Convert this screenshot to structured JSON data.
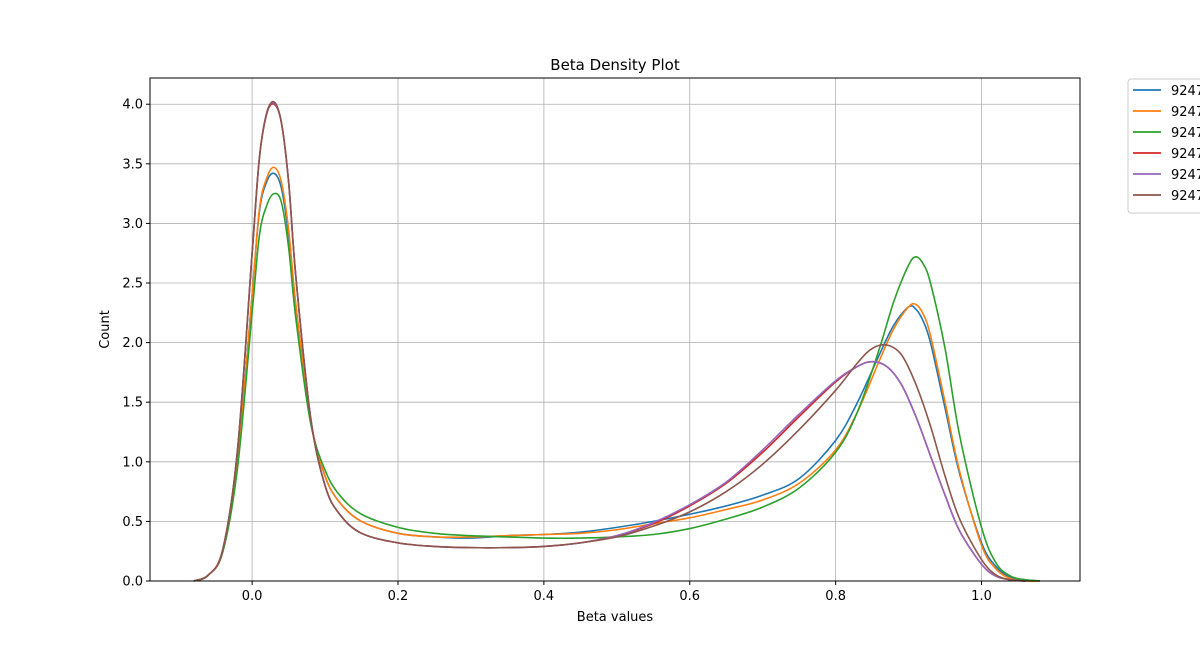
{
  "chart_data": {
    "type": "line",
    "title": "Beta Density Plot",
    "xlabel": "Beta values",
    "ylabel": "Count",
    "xlim": [
      -0.14,
      1.135
    ],
    "ylim": [
      0,
      4.22
    ],
    "xticks": [
      0.0,
      0.2,
      0.4,
      0.6,
      0.8,
      1.0
    ],
    "xtick_labels": [
      "0.0",
      "0.2",
      "0.4",
      "0.6",
      "0.8",
      "1.0"
    ],
    "yticks": [
      0.0,
      0.5,
      1.0,
      1.5,
      2.0,
      2.5,
      3.0,
      3.5,
      4.0
    ],
    "ytick_labels": [
      "0.0",
      "0.5",
      "1.0",
      "1.5",
      "2.0",
      "2.5",
      "3.0",
      "3.5",
      "4.0"
    ],
    "grid": true,
    "legend_position": "outside top-right",
    "series": [
      {
        "name": "9247",
        "color": "#1f77b4",
        "x": [
          -0.08,
          -0.06,
          -0.04,
          -0.02,
          0.0,
          0.01,
          0.02,
          0.03,
          0.04,
          0.05,
          0.06,
          0.08,
          0.1,
          0.12,
          0.15,
          0.2,
          0.25,
          0.3,
          0.35,
          0.4,
          0.45,
          0.5,
          0.55,
          0.6,
          0.65,
          0.7,
          0.75,
          0.8,
          0.83,
          0.86,
          0.88,
          0.9,
          0.91,
          0.92,
          0.93,
          0.95,
          0.97,
          1.0,
          1.02,
          1.04,
          1.06,
          1.08
        ],
        "y": [
          0.0,
          0.05,
          0.25,
          1.0,
          2.4,
          3.1,
          3.35,
          3.42,
          3.3,
          2.9,
          2.3,
          1.35,
          0.88,
          0.66,
          0.5,
          0.4,
          0.37,
          0.36,
          0.38,
          0.39,
          0.41,
          0.45,
          0.5,
          0.56,
          0.63,
          0.72,
          0.86,
          1.18,
          1.5,
          1.9,
          2.15,
          2.3,
          2.28,
          2.18,
          2.0,
          1.45,
          0.9,
          0.32,
          0.12,
          0.03,
          0.01,
          0.0
        ]
      },
      {
        "name": "9247",
        "color": "#ff7f0e",
        "x": [
          -0.08,
          -0.06,
          -0.04,
          -0.02,
          0.0,
          0.01,
          0.02,
          0.03,
          0.04,
          0.05,
          0.06,
          0.08,
          0.1,
          0.12,
          0.15,
          0.2,
          0.25,
          0.3,
          0.35,
          0.4,
          0.45,
          0.5,
          0.55,
          0.6,
          0.65,
          0.7,
          0.75,
          0.8,
          0.83,
          0.86,
          0.88,
          0.9,
          0.91,
          0.92,
          0.93,
          0.95,
          0.97,
          1.0,
          1.02,
          1.04,
          1.06,
          1.08
        ],
        "y": [
          0.0,
          0.05,
          0.25,
          1.0,
          2.4,
          3.12,
          3.38,
          3.47,
          3.35,
          2.95,
          2.32,
          1.36,
          0.88,
          0.66,
          0.5,
          0.4,
          0.37,
          0.37,
          0.38,
          0.39,
          0.4,
          0.43,
          0.48,
          0.53,
          0.6,
          0.68,
          0.82,
          1.1,
          1.42,
          1.85,
          2.12,
          2.3,
          2.32,
          2.24,
          2.06,
          1.5,
          0.92,
          0.3,
          0.1,
          0.02,
          0.0,
          0.0
        ]
      },
      {
        "name": "9247",
        "color": "#2ca02c",
        "x": [
          -0.08,
          -0.06,
          -0.04,
          -0.02,
          0.0,
          0.01,
          0.02,
          0.03,
          0.04,
          0.05,
          0.06,
          0.08,
          0.1,
          0.12,
          0.15,
          0.2,
          0.25,
          0.3,
          0.35,
          0.4,
          0.45,
          0.5,
          0.55,
          0.6,
          0.65,
          0.7,
          0.75,
          0.8,
          0.83,
          0.86,
          0.88,
          0.9,
          0.91,
          0.92,
          0.93,
          0.95,
          0.97,
          1.0,
          1.02,
          1.04,
          1.06,
          1.08
        ],
        "y": [
          0.0,
          0.05,
          0.25,
          0.95,
          2.25,
          2.9,
          3.15,
          3.25,
          3.18,
          2.8,
          2.2,
          1.33,
          0.93,
          0.72,
          0.56,
          0.45,
          0.4,
          0.38,
          0.37,
          0.36,
          0.36,
          0.37,
          0.39,
          0.44,
          0.52,
          0.62,
          0.78,
          1.08,
          1.42,
          1.95,
          2.35,
          2.65,
          2.72,
          2.66,
          2.5,
          1.95,
          1.22,
          0.45,
          0.15,
          0.04,
          0.01,
          0.0
        ]
      },
      {
        "name": "9247",
        "color": "#d62728",
        "x": [
          -0.08,
          -0.06,
          -0.04,
          -0.02,
          0.0,
          0.01,
          0.02,
          0.03,
          0.04,
          0.05,
          0.06,
          0.08,
          0.1,
          0.12,
          0.15,
          0.2,
          0.25,
          0.3,
          0.35,
          0.4,
          0.45,
          0.5,
          0.55,
          0.6,
          0.65,
          0.7,
          0.75,
          0.8,
          0.83,
          0.85,
          0.87,
          0.89,
          0.91,
          0.93,
          0.95,
          0.97,
          1.0,
          1.02,
          1.04,
          1.06
        ],
        "y": [
          0.0,
          0.05,
          0.27,
          1.1,
          2.75,
          3.55,
          3.92,
          4.0,
          3.85,
          3.35,
          2.55,
          1.38,
          0.8,
          0.56,
          0.4,
          0.32,
          0.29,
          0.28,
          0.28,
          0.29,
          0.32,
          0.38,
          0.48,
          0.63,
          0.82,
          1.08,
          1.38,
          1.67,
          1.8,
          1.84,
          1.8,
          1.65,
          1.38,
          1.05,
          0.72,
          0.42,
          0.14,
          0.04,
          0.01,
          0.0
        ]
      },
      {
        "name": "9247",
        "color": "#9467bd",
        "x": [
          -0.08,
          -0.06,
          -0.04,
          -0.02,
          0.0,
          0.01,
          0.02,
          0.03,
          0.04,
          0.05,
          0.06,
          0.08,
          0.1,
          0.12,
          0.15,
          0.2,
          0.25,
          0.3,
          0.35,
          0.4,
          0.45,
          0.5,
          0.55,
          0.6,
          0.65,
          0.7,
          0.75,
          0.8,
          0.83,
          0.85,
          0.87,
          0.89,
          0.91,
          0.93,
          0.95,
          0.97,
          1.0,
          1.02,
          1.04,
          1.06
        ],
        "y": [
          0.0,
          0.05,
          0.27,
          1.1,
          2.75,
          3.55,
          3.93,
          4.01,
          3.85,
          3.35,
          2.55,
          1.38,
          0.8,
          0.56,
          0.4,
          0.32,
          0.29,
          0.28,
          0.28,
          0.29,
          0.32,
          0.38,
          0.49,
          0.64,
          0.83,
          1.1,
          1.4,
          1.68,
          1.8,
          1.84,
          1.8,
          1.65,
          1.38,
          1.05,
          0.72,
          0.42,
          0.14,
          0.04,
          0.01,
          0.0
        ]
      },
      {
        "name": "9247",
        "color": "#8c564b",
        "x": [
          -0.08,
          -0.06,
          -0.04,
          -0.02,
          0.0,
          0.01,
          0.02,
          0.03,
          0.04,
          0.05,
          0.06,
          0.08,
          0.1,
          0.12,
          0.15,
          0.2,
          0.25,
          0.3,
          0.35,
          0.4,
          0.45,
          0.5,
          0.55,
          0.6,
          0.65,
          0.7,
          0.75,
          0.8,
          0.83,
          0.85,
          0.87,
          0.89,
          0.91,
          0.93,
          0.95,
          0.97,
          1.0,
          1.02,
          1.04,
          1.06
        ],
        "y": [
          0.0,
          0.05,
          0.27,
          1.1,
          2.75,
          3.55,
          3.92,
          4.02,
          3.85,
          3.35,
          2.55,
          1.38,
          0.8,
          0.56,
          0.4,
          0.32,
          0.29,
          0.28,
          0.28,
          0.29,
          0.32,
          0.37,
          0.46,
          0.58,
          0.75,
          0.98,
          1.27,
          1.6,
          1.83,
          1.95,
          1.98,
          1.9,
          1.65,
          1.3,
          0.88,
          0.52,
          0.18,
          0.05,
          0.01,
          0.0
        ]
      }
    ]
  }
}
